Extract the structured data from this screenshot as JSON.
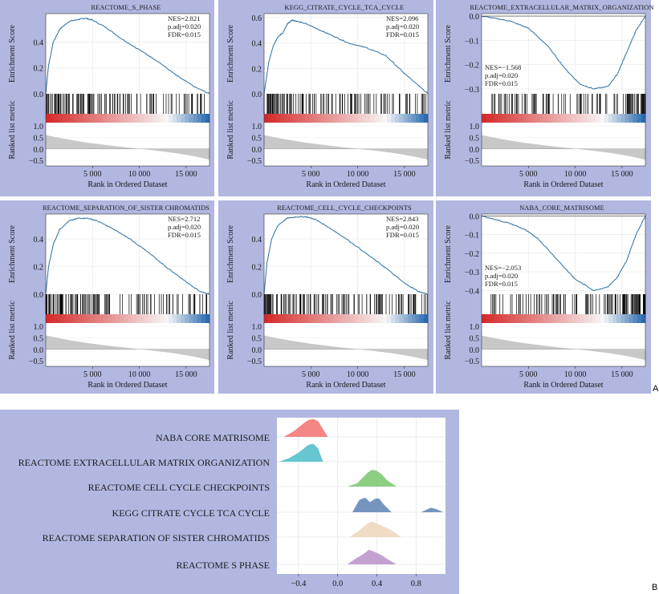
{
  "panel_labels": {
    "a": "A",
    "b": "B"
  },
  "colors": {
    "panel_bg": "#b2b7e0",
    "curve": "#2c6ea2",
    "heat_low": "#d42a2a",
    "heat_mid": "#f7f7f7",
    "heat_high": "#2b6cb0",
    "metric_fill": "#c8c8c8"
  },
  "chart_data": [
    {
      "type": "line",
      "title": "REACTOME_S_PHASE",
      "ylabel_top": "Enrichment Score",
      "ylabel_bottom": "Ranked list metric",
      "xlabel": "Rank in Ordered Dataset",
      "xlim": [
        0,
        17500
      ],
      "ylim": [
        0,
        0.62
      ],
      "yticks": [
        0.0,
        0.2,
        0.4
      ],
      "ytick_labels": [
        "0.0",
        "0.2",
        "0.4"
      ],
      "xticks": [
        5000,
        10000,
        15000
      ],
      "xtick_labels": [
        "5 000",
        "10 000",
        "15 000"
      ],
      "metric_yticks": [
        1.0,
        0.5,
        0.0,
        -0.5
      ],
      "metric_ytick_labels": [
        "1.0",
        "0.5",
        "0.0",
        "−0.5"
      ],
      "stats": {
        "nes": "NES=2.821",
        "padj": "p.adj=0.020",
        "fdr": "FDR=0.015"
      },
      "stats_position": "top-right",
      "x": [
        0,
        300,
        800,
        1500,
        2500,
        3500,
        4200,
        5000,
        6500,
        8000,
        10000,
        12000,
        14000,
        16000,
        17500
      ],
      "y": [
        0.0,
        0.22,
        0.4,
        0.5,
        0.56,
        0.575,
        0.585,
        0.57,
        0.51,
        0.43,
        0.34,
        0.25,
        0.14,
        0.05,
        0.0
      ]
    },
    {
      "type": "line",
      "title": "KEGG_CITRATE_CYCLE_TCA_CYCLE",
      "ylabel_top": "Enrichment Score",
      "ylabel_bottom": "Ranked list metric",
      "xlabel": "Rank in Ordered Dataset",
      "xlim": [
        0,
        17500
      ],
      "ylim": [
        0,
        0.63
      ],
      "yticks": [
        0.0,
        0.2,
        0.4,
        0.6
      ],
      "ytick_labels": [
        "0.0",
        "0.2",
        "0.4",
        "0.6"
      ],
      "xticks": [
        5000,
        10000,
        15000
      ],
      "xtick_labels": [
        "5 000",
        "10 000",
        "15 000"
      ],
      "metric_yticks": [
        1.0,
        0.5,
        0.0,
        -0.5
      ],
      "metric_ytick_labels": [
        "1.0",
        "0.5",
        "0.0",
        "−0.5"
      ],
      "stats": {
        "nes": "NES=2.096",
        "padj": "p.adj=0.020",
        "fdr": "FDR=0.015"
      },
      "stats_position": "top-right",
      "x": [
        0,
        500,
        1000,
        1500,
        2000,
        2500,
        3000,
        3500,
        4500,
        6000,
        7500,
        9000,
        11000,
        13000,
        15000,
        17500
      ],
      "y": [
        0.0,
        0.25,
        0.38,
        0.45,
        0.48,
        0.55,
        0.58,
        0.57,
        0.55,
        0.5,
        0.45,
        0.4,
        0.36,
        0.3,
        0.16,
        0.0
      ]
    },
    {
      "type": "line",
      "title": "REACTOME_EXTRACELLULAR_MATRIX_ORGANIZATION",
      "ylabel_top": "Enrichment Score",
      "ylabel_bottom": "Ranked list metric",
      "xlabel": "Rank in Ordered Dataset",
      "xlim": [
        0,
        17500
      ],
      "ylim": [
        -0.32,
        0.01
      ],
      "yticks": [
        0.0,
        -0.1,
        -0.2,
        -0.3
      ],
      "ytick_labels": [
        "0.0",
        "−0.1",
        "−0.2",
        "−0.3"
      ],
      "xticks": [
        5000,
        10000,
        15000
      ],
      "xtick_labels": [
        "5 000",
        "10 000",
        "15 000"
      ],
      "metric_yticks": [
        1.0,
        0.5,
        0.0,
        -0.5
      ],
      "metric_ytick_labels": [
        "1.0",
        "0.5",
        "0.0",
        "−0.5"
      ],
      "stats": {
        "nes": "NES=−1.568",
        "padj": "p.adj=0.020",
        "fdr": "FDR=0.015"
      },
      "stats_position": "bottom-left",
      "x": [
        0,
        1500,
        3000,
        5000,
        7000,
        9000,
        10500,
        12000,
        13500,
        14500,
        15500,
        16500,
        17500
      ],
      "y": [
        0.0,
        -0.01,
        -0.02,
        -0.05,
        -0.12,
        -0.22,
        -0.28,
        -0.3,
        -0.29,
        -0.24,
        -0.15,
        -0.06,
        0.0
      ]
    },
    {
      "type": "line",
      "title": "REACTOME_SEPARATION_OF_SISTER CHROMATIDS",
      "ylabel_top": "Enrichment Score",
      "ylabel_bottom": "Ranked list metric",
      "xlabel": "Rank in Ordered Dataset",
      "xlim": [
        0,
        17500
      ],
      "ylim": [
        0,
        0.58
      ],
      "yticks": [
        0.0,
        0.2,
        0.4
      ],
      "ytick_labels": [
        "0.0",
        "0.2",
        "0.4"
      ],
      "xticks": [
        5000,
        10000,
        15000
      ],
      "xtick_labels": [
        "5 000",
        "10 000",
        "15 000"
      ],
      "metric_yticks": [
        1.0,
        0.5,
        0.0,
        -0.5
      ],
      "metric_ytick_labels": [
        "1.0",
        "0.5",
        "0.0",
        "−0.5"
      ],
      "stats": {
        "nes": "NES=2.712",
        "padj": "p.adj=0.020",
        "fdr": "FDR=0.015"
      },
      "stats_position": "top-right",
      "x": [
        0,
        300,
        800,
        1500,
        2500,
        3500,
        4500,
        5500,
        7000,
        9000,
        11000,
        13000,
        15000,
        16500,
        17500
      ],
      "y": [
        0.0,
        0.2,
        0.36,
        0.47,
        0.53,
        0.55,
        0.55,
        0.53,
        0.48,
        0.4,
        0.3,
        0.19,
        0.09,
        0.02,
        0.0
      ]
    },
    {
      "type": "line",
      "title": "REACTOME_CELL_CYCLE_CHECKPOINTS",
      "ylabel_top": "Enrichment Score",
      "ylabel_bottom": "Ranked list metric",
      "xlabel": "Rank in Ordered Dataset",
      "xlim": [
        0,
        17500
      ],
      "ylim": [
        0,
        0.58
      ],
      "yticks": [
        0.0,
        0.2,
        0.4
      ],
      "ytick_labels": [
        "0.0",
        "0.2",
        "0.4"
      ],
      "xticks": [
        5000,
        10000,
        15000
      ],
      "xtick_labels": [
        "5 000",
        "10 000",
        "15 000"
      ],
      "metric_yticks": [
        1.0,
        0.5,
        0.0,
        -0.5
      ],
      "metric_ytick_labels": [
        "1.0",
        "0.5",
        "0.0",
        "−0.5"
      ],
      "stats": {
        "nes": "NES=2.843",
        "padj": "p.adj=0.020",
        "fdr": "FDR=0.015"
      },
      "stats_position": "top-right",
      "x": [
        0,
        300,
        800,
        1500,
        2500,
        3500,
        4500,
        5500,
        7000,
        9000,
        11000,
        13000,
        15000,
        16500,
        17500
      ],
      "y": [
        0.0,
        0.22,
        0.4,
        0.5,
        0.55,
        0.56,
        0.56,
        0.54,
        0.48,
        0.39,
        0.29,
        0.19,
        0.08,
        0.02,
        0.0
      ]
    },
    {
      "type": "line",
      "title": "NABA_CORE_MATRISOME",
      "ylabel_top": "Enrichment Score",
      "ylabel_bottom": "Ranked list metric",
      "xlabel": "Rank in Ordered Dataset",
      "xlim": [
        0,
        17500
      ],
      "ylim": [
        -0.42,
        0.01
      ],
      "yticks": [
        0.0,
        -0.1,
        -0.2,
        -0.3,
        -0.4
      ],
      "ytick_labels": [
        "0.0",
        "−0.1",
        "−0.2",
        "−0.3",
        "−0.4"
      ],
      "xticks": [
        5000,
        10000,
        15000
      ],
      "xtick_labels": [
        "5 000",
        "10 000",
        "15 000"
      ],
      "metric_yticks": [
        1.0,
        0.5,
        0.0,
        -0.5
      ],
      "metric_ytick_labels": [
        "1.0",
        "0.5",
        "0.0",
        "−0.5"
      ],
      "stats": {
        "nes": "NES=−2.053",
        "padj": "p.adj=0.020",
        "fdr": "FDR=0.015"
      },
      "stats_position": "bottom-left",
      "x": [
        0,
        1500,
        3000,
        4500,
        6000,
        8000,
        10000,
        12000,
        13500,
        14500,
        15500,
        16500,
        17500
      ],
      "y": [
        0.0,
        -0.02,
        -0.04,
        -0.07,
        -0.12,
        -0.23,
        -0.34,
        -0.4,
        -0.38,
        -0.33,
        -0.24,
        -0.1,
        0.0
      ]
    },
    {
      "type": "ridge",
      "categories": [
        "NABA CORE MATRISOME",
        "REACTOME EXTRACELLULAR MATRIX ORGANIZATION",
        "REACTOME CELL CYCLE CHECKPOINTS",
        "KEGG CITRATE CYCLE TCA CYCLE",
        "REACTOME SEPARATION OF SISTER CHROMATIDS",
        "REACTOME S PHASE"
      ],
      "colors": [
        "#f37f7f",
        "#5ec3cf",
        "#86cc7c",
        "#6f8fba",
        "#efdac2",
        "#c09ccd"
      ],
      "xlim": [
        -0.62,
        1.1
      ],
      "xticks": [
        -0.4,
        0.0,
        0.4,
        0.8
      ],
      "xtick_labels": [
        "−0.4",
        "0.0",
        "0.4",
        "0.8"
      ],
      "series": [
        {
          "x": [
            -0.55,
            -0.45,
            -0.35,
            -0.3,
            -0.25,
            -0.2,
            -0.15,
            -0.1
          ],
          "y": [
            0,
            0.25,
            0.6,
            0.75,
            0.8,
            0.7,
            0.35,
            0
          ]
        },
        {
          "x": [
            -0.6,
            -0.5,
            -0.4,
            -0.3,
            -0.25,
            -0.2,
            -0.15
          ],
          "y": [
            0,
            0.15,
            0.4,
            0.75,
            0.8,
            0.6,
            0
          ]
        },
        {
          "x": [
            0.1,
            0.2,
            0.3,
            0.35,
            0.4,
            0.45,
            0.5,
            0.6
          ],
          "y": [
            0,
            0.15,
            0.6,
            0.75,
            0.7,
            0.55,
            0.3,
            0
          ]
        },
        {
          "x": [
            0.15,
            0.22,
            0.28,
            0.33,
            0.38,
            0.42,
            0.47,
            0.55,
            0.85,
            0.95,
            1.0,
            1.08
          ],
          "y": [
            0,
            0.55,
            0.65,
            0.45,
            0.6,
            0.62,
            0.35,
            0,
            0,
            0.2,
            0.15,
            0
          ]
        },
        {
          "x": [
            0.12,
            0.22,
            0.3,
            0.35,
            0.4,
            0.48,
            0.55,
            0.65
          ],
          "y": [
            0,
            0.3,
            0.6,
            0.7,
            0.6,
            0.45,
            0.3,
            0
          ]
        },
        {
          "x": [
            0.1,
            0.18,
            0.26,
            0.32,
            0.38,
            0.45,
            0.52,
            0.6
          ],
          "y": [
            0,
            0.25,
            0.45,
            0.65,
            0.55,
            0.4,
            0.2,
            0
          ]
        }
      ]
    }
  ]
}
